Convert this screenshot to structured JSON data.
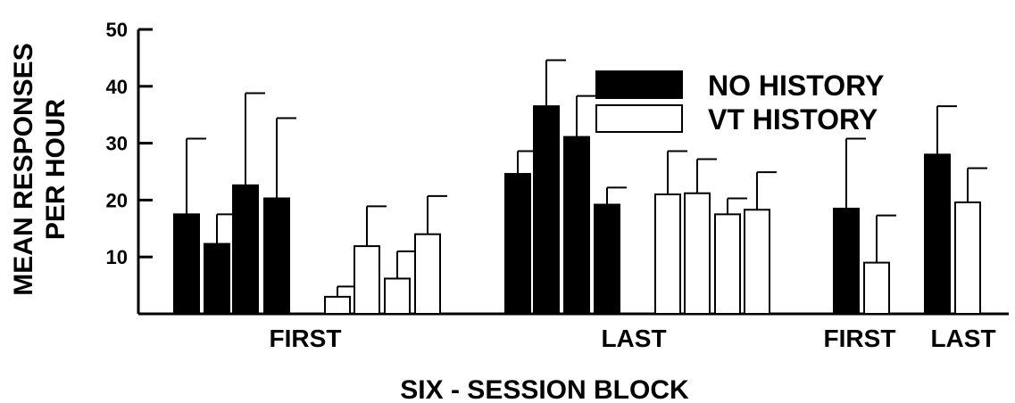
{
  "chart_data": {
    "type": "bar",
    "xlabel": "SIX - SESSION BLOCK",
    "ylabel_lines": [
      "MEAN RESPONSES",
      "PER HOUR"
    ],
    "ylim": [
      0,
      50
    ],
    "yticks": [
      "10",
      "20",
      "30",
      "40",
      "50"
    ],
    "grid": false,
    "legend_position": "top-right",
    "legend": [
      {
        "label": "NO HISTORY",
        "fill": "#000000"
      },
      {
        "label": "VT HISTORY",
        "fill": "#ffffff"
      }
    ],
    "group_labels": [
      "FIRST",
      "LAST",
      "FIRST",
      "LAST"
    ],
    "bars": [
      {
        "series": "NO HISTORY",
        "value": 17.5,
        "error_top": 30.8
      },
      {
        "series": "NO HISTORY",
        "value": 12.3,
        "error_top": 17.5
      },
      {
        "series": "NO HISTORY",
        "value": 22.6,
        "error_top": 38.8
      },
      {
        "series": "NO HISTORY",
        "value": 20.3,
        "error_top": 34.4
      },
      {
        "series": "VT HISTORY",
        "value": 3.0,
        "error_top": 4.8
      },
      {
        "series": "VT HISTORY",
        "value": 11.9,
        "error_top": 18.9
      },
      {
        "series": "VT HISTORY",
        "value": 6.2,
        "error_top": 11.0
      },
      {
        "series": "VT HISTORY",
        "value": 14.0,
        "error_top": 20.7
      },
      {
        "series": "NO HISTORY",
        "value": 24.6,
        "error_top": 28.6
      },
      {
        "series": "NO HISTORY",
        "value": 36.5,
        "error_top": 44.6
      },
      {
        "series": "NO HISTORY",
        "value": 31.1,
        "error_top": 38.3
      },
      {
        "series": "NO HISTORY",
        "value": 19.2,
        "error_top": 22.2
      },
      {
        "series": "VT HISTORY",
        "value": 21.0,
        "error_top": 28.6
      },
      {
        "series": "VT HISTORY",
        "value": 21.2,
        "error_top": 27.2
      },
      {
        "series": "VT HISTORY",
        "value": 17.5,
        "error_top": 20.3
      },
      {
        "series": "VT HISTORY",
        "value": 18.3,
        "error_top": 24.9
      },
      {
        "series": "NO HISTORY",
        "value": 18.5,
        "error_top": 30.8
      },
      {
        "series": "VT HISTORY",
        "value": 9.0,
        "error_top": 17.3
      },
      {
        "series": "NO HISTORY",
        "value": 28.0,
        "error_top": 36.5
      },
      {
        "series": "VT HISTORY",
        "value": 19.6,
        "error_top": 25.6
      }
    ]
  }
}
